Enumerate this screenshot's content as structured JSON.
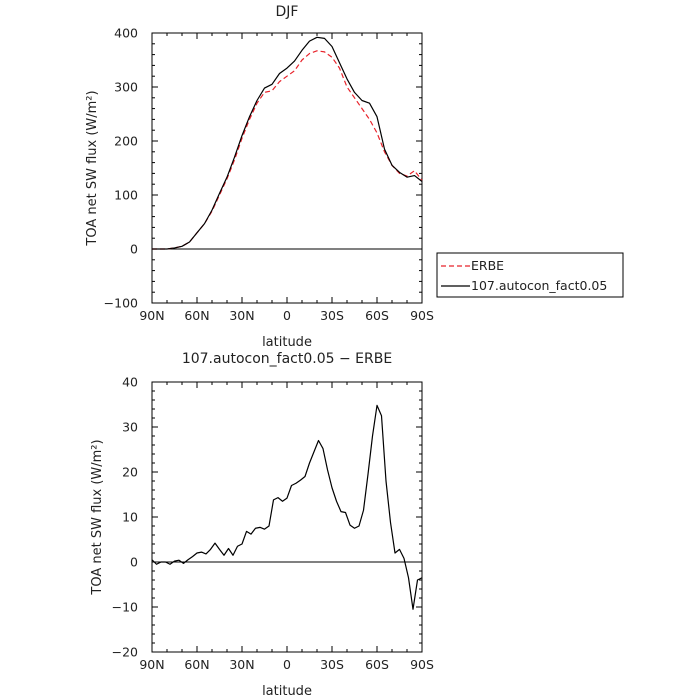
{
  "chart_data": [
    {
      "type": "line",
      "title": "DJF",
      "xlabel": "latitude",
      "ylabel": "TOA net SW flux (W/m²)",
      "xlim": [
        -90,
        90
      ],
      "ylim": [
        -100,
        400
      ],
      "x_ticks": [
        "90N",
        "60N",
        "30N",
        "0",
        "30S",
        "60S",
        "90S"
      ],
      "y_ticks": [
        "−100",
        "0",
        "100",
        "200",
        "300",
        "400"
      ],
      "legend": "outside-right",
      "series": [
        {
          "name": "ERBE",
          "color": "#e8232b",
          "dash": "dashed",
          "x": [
            -90,
            -85,
            -80,
            -75,
            -70,
            -65,
            -60,
            -55,
            -50,
            -45,
            -40,
            -35,
            -30,
            -25,
            -20,
            -15,
            -10,
            -5,
            0,
            5,
            10,
            15,
            20,
            25,
            30,
            35,
            40,
            45,
            50,
            55,
            60,
            65,
            70,
            75,
            80,
            85,
            90
          ],
          "y": [
            0,
            0,
            0,
            2,
            5,
            13,
            30,
            47,
            70,
            100,
            130,
            165,
            205,
            240,
            270,
            290,
            293,
            310,
            320,
            330,
            350,
            362,
            367,
            365,
            355,
            335,
            300,
            280,
            260,
            240,
            215,
            180,
            155,
            140,
            135,
            145,
            127
          ]
        },
        {
          "name": "107.autocon_fact0.05",
          "color": "#000000",
          "dash": "solid",
          "x": [
            -90,
            -85,
            -80,
            -75,
            -70,
            -65,
            -60,
            -55,
            -50,
            -45,
            -40,
            -35,
            -30,
            -25,
            -20,
            -15,
            -10,
            -5,
            0,
            5,
            10,
            15,
            20,
            25,
            30,
            35,
            40,
            45,
            50,
            55,
            60,
            65,
            70,
            75,
            80,
            85,
            90
          ],
          "y": [
            0,
            0,
            0,
            2,
            5,
            13,
            30,
            47,
            72,
            103,
            133,
            170,
            210,
            245,
            275,
            298,
            305,
            325,
            335,
            348,
            368,
            385,
            392,
            390,
            375,
            345,
            315,
            290,
            275,
            270,
            245,
            185,
            155,
            142,
            133,
            136,
            125
          ]
        }
      ]
    },
    {
      "type": "line",
      "title": "107.autocon_fact0.05 − ERBE",
      "xlabel": "latitude",
      "ylabel": "TOA net SW flux (W/m²)",
      "xlim": [
        -90,
        90
      ],
      "ylim": [
        -20,
        40
      ],
      "x_ticks": [
        "90N",
        "60N",
        "30N",
        "0",
        "30S",
        "60S",
        "90S"
      ],
      "y_ticks": [
        "−20",
        "−10",
        "0",
        "10",
        "20",
        "30",
        "40"
      ],
      "series": [
        {
          "color": "#000000",
          "dash": "solid",
          "x": [
            -90,
            -87,
            -84,
            -81,
            -78,
            -75,
            -72,
            -69,
            -66,
            -63,
            -60,
            -57,
            -54,
            -51,
            -48,
            -45,
            -42,
            -39,
            -36,
            -33,
            -30,
            -27,
            -24,
            -21,
            -18,
            -15,
            -12,
            -9,
            -6,
            -3,
            0,
            3,
            6,
            9,
            12,
            15,
            18,
            21,
            24,
            27,
            30,
            33,
            36,
            39,
            42,
            45,
            48,
            51,
            54,
            57,
            60,
            63,
            66,
            69,
            72,
            75,
            78,
            81,
            84,
            87,
            90
          ],
          "y": [
            0.5,
            -0.5,
            0,
            0,
            -0.5,
            0.2,
            0.4,
            -0.3,
            0.5,
            1.2,
            2,
            2.2,
            1.8,
            2.8,
            4.2,
            2.8,
            1.5,
            3.0,
            1.5,
            3.5,
            4.0,
            6.8,
            6.2,
            7.5,
            7.7,
            7.3,
            8.0,
            13.8,
            14.3,
            13.5,
            14.2,
            17.0,
            17.5,
            18.2,
            19.0,
            22.0,
            24.5,
            27.0,
            25.2,
            20.5,
            16.5,
            13.5,
            11.2,
            11.0,
            8.2,
            7.5,
            8.0,
            11.5,
            19.5,
            28.0,
            34.8,
            32.5,
            18.0,
            8.8,
            2.0,
            2.8,
            0.8,
            -3.5,
            -10.5,
            -4.0,
            -3.5
          ]
        }
      ]
    }
  ]
}
